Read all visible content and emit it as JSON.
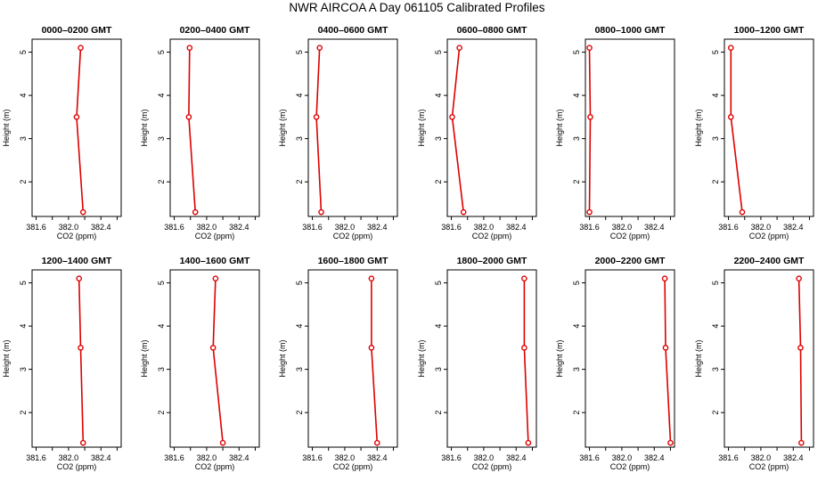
{
  "title": "NWR AIRCOA A  Day 061105  Calibrated Profiles",
  "colors": {
    "series": "#dd0000",
    "axis": "#000000"
  },
  "chart_data": [
    {
      "type": "line",
      "title": "0000–0200 GMT",
      "xlabel": "CO2 (ppm)",
      "ylabel": "Height (m)",
      "xlim": [
        381.55,
        382.65
      ],
      "ylim": [
        1.2,
        5.3
      ],
      "xticks": [
        "381.6",
        "382.0",
        "382.4"
      ],
      "yticks": [
        "2",
        "3",
        "4",
        "5"
      ],
      "series": [
        {
          "x": [
            382.15,
            382.1,
            382.18
          ],
          "y": [
            5.1,
            3.5,
            1.3
          ]
        }
      ]
    },
    {
      "type": "line",
      "title": "0200–0400 GMT",
      "xlabel": "CO2 (ppm)",
      "ylabel": "Height (m)",
      "xlim": [
        381.55,
        382.65
      ],
      "ylim": [
        1.2,
        5.3
      ],
      "xticks": [
        "381.6",
        "382.0",
        "382.4"
      ],
      "yticks": [
        "2",
        "3",
        "4",
        "5"
      ],
      "series": [
        {
          "x": [
            381.79,
            381.78,
            381.86
          ],
          "y": [
            5.1,
            3.5,
            1.3
          ]
        }
      ]
    },
    {
      "type": "line",
      "title": "0400–0600 GMT",
      "xlabel": "CO2 (ppm)",
      "ylabel": "Height (m)",
      "xlim": [
        381.55,
        382.65
      ],
      "ylim": [
        1.2,
        5.3
      ],
      "xticks": [
        "381.6",
        "382.0",
        "382.4"
      ],
      "yticks": [
        "2",
        "3",
        "4",
        "5"
      ],
      "series": [
        {
          "x": [
            381.69,
            381.65,
            381.71
          ],
          "y": [
            5.1,
            3.5,
            1.3
          ]
        }
      ]
    },
    {
      "type": "line",
      "title": "0600–0800 GMT",
      "xlabel": "CO2 (ppm)",
      "ylabel": "Height (m)",
      "xlim": [
        381.55,
        382.65
      ],
      "ylim": [
        1.2,
        5.3
      ],
      "xticks": [
        "381.6",
        "382.0",
        "382.4"
      ],
      "yticks": [
        "2",
        "3",
        "4",
        "5"
      ],
      "series": [
        {
          "x": [
            381.7,
            381.61,
            381.75
          ],
          "y": [
            5.1,
            3.5,
            1.3
          ]
        }
      ]
    },
    {
      "type": "line",
      "title": "0800–1000 GMT",
      "xlabel": "CO2 (ppm)",
      "ylabel": "Height (m)",
      "xlim": [
        381.55,
        382.65
      ],
      "ylim": [
        1.2,
        5.3
      ],
      "xticks": [
        "381.6",
        "382.0",
        "382.4"
      ],
      "yticks": [
        "2",
        "3",
        "4",
        "5"
      ],
      "series": [
        {
          "x": [
            381.6,
            381.61,
            381.6
          ],
          "y": [
            5.1,
            3.5,
            1.3
          ]
        }
      ]
    },
    {
      "type": "line",
      "title": "1000–1200 GMT",
      "xlabel": "CO2 (ppm)",
      "ylabel": "Height (m)",
      "xlim": [
        381.55,
        382.65
      ],
      "ylim": [
        1.2,
        5.3
      ],
      "xticks": [
        "381.6",
        "382.0",
        "382.4"
      ],
      "yticks": [
        "2",
        "3",
        "4",
        "5"
      ],
      "series": [
        {
          "x": [
            381.63,
            381.63,
            381.77
          ],
          "y": [
            5.1,
            3.5,
            1.3
          ]
        }
      ]
    },
    {
      "type": "line",
      "title": "1200–1400 GMT",
      "xlabel": "CO2 (ppm)",
      "ylabel": "Height (m)",
      "xlim": [
        381.55,
        382.65
      ],
      "ylim": [
        1.2,
        5.3
      ],
      "xticks": [
        "381.6",
        "382.0",
        "382.4"
      ],
      "yticks": [
        "2",
        "3",
        "4",
        "5"
      ],
      "series": [
        {
          "x": [
            382.13,
            382.15,
            382.18
          ],
          "y": [
            5.1,
            3.5,
            1.3
          ]
        }
      ]
    },
    {
      "type": "line",
      "title": "1400–1600 GMT",
      "xlabel": "CO2 (ppm)",
      "ylabel": "Height (m)",
      "xlim": [
        381.55,
        382.65
      ],
      "ylim": [
        1.2,
        5.3
      ],
      "xticks": [
        "381.6",
        "382.0",
        "382.4"
      ],
      "yticks": [
        "2",
        "3",
        "4",
        "5"
      ],
      "series": [
        {
          "x": [
            382.11,
            382.08,
            382.2
          ],
          "y": [
            5.1,
            3.5,
            1.3
          ]
        }
      ]
    },
    {
      "type": "line",
      "title": "1600–1800 GMT",
      "xlabel": "CO2 (ppm)",
      "ylabel": "Height (m)",
      "xlim": [
        381.55,
        382.65
      ],
      "ylim": [
        1.2,
        5.3
      ],
      "xticks": [
        "381.6",
        "382.0",
        "382.4"
      ],
      "yticks": [
        "2",
        "3",
        "4",
        "5"
      ],
      "series": [
        {
          "x": [
            382.33,
            382.33,
            382.4
          ],
          "y": [
            5.1,
            3.5,
            1.3
          ]
        }
      ]
    },
    {
      "type": "line",
      "title": "1800–2000 GMT",
      "xlabel": "CO2 (ppm)",
      "ylabel": "Height (m)",
      "xlim": [
        381.55,
        382.65
      ],
      "ylim": [
        1.2,
        5.3
      ],
      "xticks": [
        "381.6",
        "382.0",
        "382.4"
      ],
      "yticks": [
        "2",
        "3",
        "4",
        "5"
      ],
      "series": [
        {
          "x": [
            382.5,
            382.5,
            382.55
          ],
          "y": [
            5.1,
            3.5,
            1.3
          ]
        }
      ]
    },
    {
      "type": "line",
      "title": "2000–2200 GMT",
      "xlabel": "CO2 (ppm)",
      "ylabel": "Height (m)",
      "xlim": [
        381.55,
        382.65
      ],
      "ylim": [
        1.2,
        5.3
      ],
      "xticks": [
        "381.6",
        "382.0",
        "382.4"
      ],
      "yticks": [
        "2",
        "3",
        "4",
        "5"
      ],
      "series": [
        {
          "x": [
            382.53,
            382.54,
            382.6
          ],
          "y": [
            5.1,
            3.5,
            1.3
          ]
        }
      ]
    },
    {
      "type": "line",
      "title": "2200–2400 GMT",
      "xlabel": "CO2 (ppm)",
      "ylabel": "Height (m)",
      "xlim": [
        381.55,
        382.65
      ],
      "ylim": [
        1.2,
        5.3
      ],
      "xticks": [
        "381.6",
        "382.0",
        "382.4"
      ],
      "yticks": [
        "2",
        "3",
        "4",
        "5"
      ],
      "series": [
        {
          "x": [
            382.47,
            382.49,
            382.5
          ],
          "y": [
            5.1,
            3.5,
            1.3
          ]
        }
      ]
    }
  ]
}
